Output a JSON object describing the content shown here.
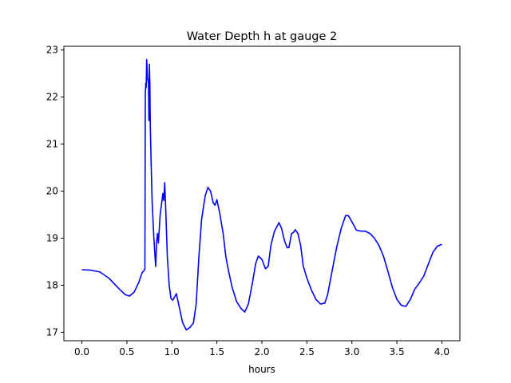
{
  "chart_data": {
    "type": "line",
    "title": "Water Depth h at gauge 2",
    "xlabel": "hours",
    "ylabel": "",
    "xlim": [
      -0.2,
      4.2
    ],
    "ylim": [
      16.82,
      23.08
    ],
    "xticks": [
      "0.0",
      "0.5",
      "1.0",
      "1.5",
      "2.0",
      "2.5",
      "3.0",
      "3.5",
      "4.0"
    ],
    "yticks": [
      "17",
      "18",
      "19",
      "20",
      "21",
      "22",
      "23"
    ],
    "grid": false,
    "legend": "none",
    "series": [
      {
        "color": "#0000ff",
        "points": [
          [
            0.0,
            18.33
          ],
          [
            0.1,
            18.32
          ],
          [
            0.2,
            18.28
          ],
          [
            0.3,
            18.15
          ],
          [
            0.4,
            17.95
          ],
          [
            0.48,
            17.8
          ],
          [
            0.53,
            17.77
          ],
          [
            0.58,
            17.85
          ],
          [
            0.63,
            18.05
          ],
          [
            0.67,
            18.27
          ],
          [
            0.695,
            18.32
          ],
          [
            0.7,
            18.35
          ],
          [
            0.705,
            22.05
          ],
          [
            0.71,
            22.3
          ],
          [
            0.715,
            22.2
          ],
          [
            0.72,
            22.8
          ],
          [
            0.73,
            22.4
          ],
          [
            0.74,
            22.3
          ],
          [
            0.745,
            21.5
          ],
          [
            0.75,
            22.7
          ],
          [
            0.755,
            22.3
          ],
          [
            0.76,
            21.4
          ],
          [
            0.77,
            20.6
          ],
          [
            0.78,
            19.8
          ],
          [
            0.8,
            19.0
          ],
          [
            0.82,
            18.4
          ],
          [
            0.83,
            18.9
          ],
          [
            0.84,
            19.1
          ],
          [
            0.85,
            18.9
          ],
          [
            0.87,
            19.5
          ],
          [
            0.9,
            19.95
          ],
          [
            0.91,
            19.8
          ],
          [
            0.92,
            20.18
          ],
          [
            0.93,
            19.7
          ],
          [
            0.95,
            18.6
          ],
          [
            0.97,
            18.0
          ],
          [
            0.99,
            17.72
          ],
          [
            1.01,
            17.68
          ],
          [
            1.05,
            17.82
          ],
          [
            1.08,
            17.55
          ],
          [
            1.12,
            17.2
          ],
          [
            1.16,
            17.05
          ],
          [
            1.2,
            17.1
          ],
          [
            1.24,
            17.2
          ],
          [
            1.27,
            17.6
          ],
          [
            1.3,
            18.6
          ],
          [
            1.33,
            19.4
          ],
          [
            1.37,
            19.9
          ],
          [
            1.4,
            20.08
          ],
          [
            1.43,
            20.0
          ],
          [
            1.46,
            19.75
          ],
          [
            1.48,
            19.7
          ],
          [
            1.5,
            19.82
          ],
          [
            1.53,
            19.55
          ],
          [
            1.57,
            19.1
          ],
          [
            1.6,
            18.6
          ],
          [
            1.63,
            18.3
          ],
          [
            1.67,
            17.95
          ],
          [
            1.72,
            17.65
          ],
          [
            1.77,
            17.5
          ],
          [
            1.81,
            17.43
          ],
          [
            1.85,
            17.6
          ],
          [
            1.9,
            18.1
          ],
          [
            1.93,
            18.45
          ],
          [
            1.96,
            18.62
          ],
          [
            2.0,
            18.55
          ],
          [
            2.04,
            18.35
          ],
          [
            2.07,
            18.4
          ],
          [
            2.1,
            18.85
          ],
          [
            2.14,
            19.15
          ],
          [
            2.19,
            19.33
          ],
          [
            2.22,
            19.2
          ],
          [
            2.25,
            18.95
          ],
          [
            2.28,
            18.8
          ],
          [
            2.3,
            18.8
          ],
          [
            2.33,
            19.1
          ],
          [
            2.35,
            19.12
          ],
          [
            2.37,
            19.18
          ],
          [
            2.4,
            19.1
          ],
          [
            2.43,
            18.85
          ],
          [
            2.46,
            18.4
          ],
          [
            2.5,
            18.15
          ],
          [
            2.55,
            17.9
          ],
          [
            2.6,
            17.7
          ],
          [
            2.65,
            17.6
          ],
          [
            2.7,
            17.62
          ],
          [
            2.73,
            17.8
          ],
          [
            2.78,
            18.3
          ],
          [
            2.83,
            18.8
          ],
          [
            2.88,
            19.2
          ],
          [
            2.93,
            19.48
          ],
          [
            2.96,
            19.48
          ],
          [
            3.0,
            19.35
          ],
          [
            3.05,
            19.17
          ],
          [
            3.1,
            19.15
          ],
          [
            3.15,
            19.15
          ],
          [
            3.2,
            19.1
          ],
          [
            3.25,
            19.0
          ],
          [
            3.3,
            18.85
          ],
          [
            3.35,
            18.62
          ],
          [
            3.4,
            18.3
          ],
          [
            3.45,
            17.95
          ],
          [
            3.5,
            17.7
          ],
          [
            3.55,
            17.57
          ],
          [
            3.6,
            17.55
          ],
          [
            3.65,
            17.7
          ],
          [
            3.7,
            17.92
          ],
          [
            3.75,
            18.05
          ],
          [
            3.8,
            18.2
          ],
          [
            3.85,
            18.45
          ],
          [
            3.9,
            18.7
          ],
          [
            3.95,
            18.83
          ],
          [
            4.0,
            18.87
          ]
        ]
      }
    ]
  }
}
